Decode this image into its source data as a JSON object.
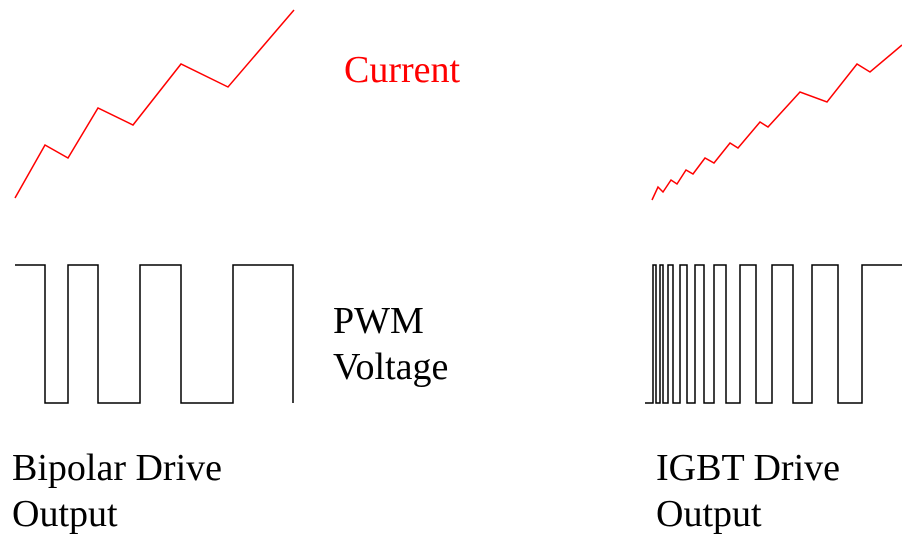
{
  "labels": {
    "current": "Current",
    "pwm_line1": "PWM",
    "pwm_line2": "Voltage",
    "bipolar_line1": "Bipolar Drive",
    "bipolar_line2": "Output",
    "igbt_line1": "IGBT Drive",
    "igbt_line2": "Output"
  },
  "colors": {
    "current_trace": "#ff0000",
    "pwm_trace": "#000000",
    "text": "#000000",
    "background": "#ffffff"
  }
}
